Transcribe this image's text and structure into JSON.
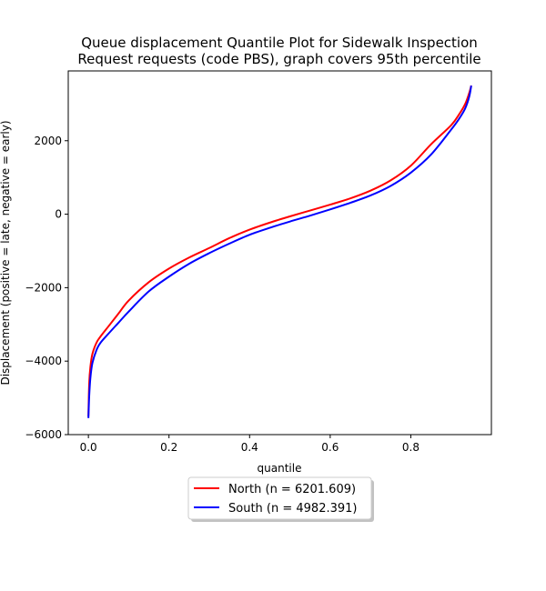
{
  "chart_data": {
    "type": "line",
    "title_line1": "Queue displacement Quantile Plot for Sidewalk Inspection",
    "title_line2": "Request  requests (code PBS), graph covers 95th percentile",
    "xlabel": "quantile",
    "ylabel": "Displacement (positive = late, negative = early)",
    "xlim": [
      -0.05,
      1.0
    ],
    "ylim": [
      -6000,
      3900
    ],
    "xticks": [
      0.0,
      0.2,
      0.4,
      0.6,
      0.8
    ],
    "xtick_labels": [
      "0.0",
      "0.2",
      "0.4",
      "0.6",
      "0.8"
    ],
    "yticks": [
      -6000,
      -4000,
      -2000,
      0,
      2000
    ],
    "ytick_labels": [
      "−6000",
      "−4000",
      "−2000",
      "0",
      "2000"
    ],
    "grid": false,
    "legend_position": "below plot, centered",
    "series": [
      {
        "name": "North (n = 6201.609)",
        "color": "#ff0000",
        "x": [
          0.0,
          0.002,
          0.005,
          0.01,
          0.02,
          0.03,
          0.05,
          0.075,
          0.1,
          0.15,
          0.2,
          0.25,
          0.3,
          0.35,
          0.4,
          0.45,
          0.5,
          0.55,
          0.6,
          0.65,
          0.7,
          0.75,
          0.8,
          0.85,
          0.9,
          0.92,
          0.935,
          0.945,
          0.95
        ],
        "y": [
          -5500,
          -4600,
          -4150,
          -3800,
          -3500,
          -3330,
          -3050,
          -2700,
          -2350,
          -1850,
          -1480,
          -1180,
          -920,
          -650,
          -420,
          -230,
          -60,
          100,
          260,
          430,
          640,
          920,
          1320,
          1900,
          2420,
          2720,
          3000,
          3300,
          3500
        ]
      },
      {
        "name": "South (n = 4982.391)",
        "color": "#0000ff",
        "x": [
          0.0,
          0.002,
          0.005,
          0.01,
          0.02,
          0.03,
          0.05,
          0.075,
          0.1,
          0.15,
          0.2,
          0.25,
          0.3,
          0.35,
          0.4,
          0.45,
          0.5,
          0.55,
          0.6,
          0.65,
          0.7,
          0.75,
          0.8,
          0.85,
          0.9,
          0.92,
          0.935,
          0.945,
          0.95
        ],
        "y": [
          -5550,
          -4950,
          -4450,
          -4050,
          -3700,
          -3500,
          -3250,
          -2950,
          -2650,
          -2100,
          -1700,
          -1350,
          -1060,
          -800,
          -560,
          -370,
          -200,
          -40,
          130,
          310,
          510,
          770,
          1130,
          1620,
          2300,
          2600,
          2880,
          3200,
          3500
        ]
      }
    ]
  }
}
